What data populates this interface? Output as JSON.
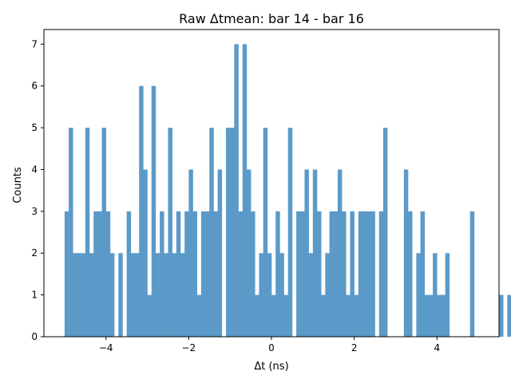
{
  "chart_data": {
    "type": "bar",
    "title": "Raw Δtmean: bar 14 - bar 16",
    "xlabel": "Δt (ns)",
    "ylabel": "Counts",
    "xlim": [
      -5.5,
      5.5
    ],
    "ylim": [
      0,
      7.35
    ],
    "xticks": [
      -4,
      -2,
      0,
      2,
      4
    ],
    "yticks": [
      0,
      1,
      2,
      3,
      4,
      5,
      6,
      7
    ],
    "bin_start": -5.0,
    "bin_width": 0.1,
    "values": [
      3,
      5,
      2,
      2,
      2,
      5,
      2,
      3,
      3,
      5,
      3,
      2,
      0,
      2,
      0,
      3,
      2,
      2,
      6,
      4,
      1,
      6,
      2,
      3,
      2,
      5,
      2,
      3,
      2,
      3,
      4,
      3,
      1,
      3,
      3,
      5,
      3,
      4,
      0,
      5,
      5,
      7,
      3,
      7,
      4,
      3,
      1,
      2,
      5,
      2,
      1,
      3,
      2,
      1,
      5,
      0,
      3,
      3,
      4,
      2,
      4,
      3,
      1,
      2,
      3,
      3,
      4,
      3,
      1,
      3,
      1,
      3,
      3,
      3,
      3,
      0,
      3,
      5,
      0,
      0,
      0,
      0,
      4,
      3,
      0,
      2,
      3,
      1,
      1,
      2,
      1,
      1,
      2,
      0,
      0,
      0,
      0,
      0,
      3,
      0,
      0,
      0,
      0,
      0,
      0,
      1,
      0,
      1,
      2,
      0
    ],
    "color": "#5b9ac8",
    "legend": "none",
    "grid": false
  }
}
